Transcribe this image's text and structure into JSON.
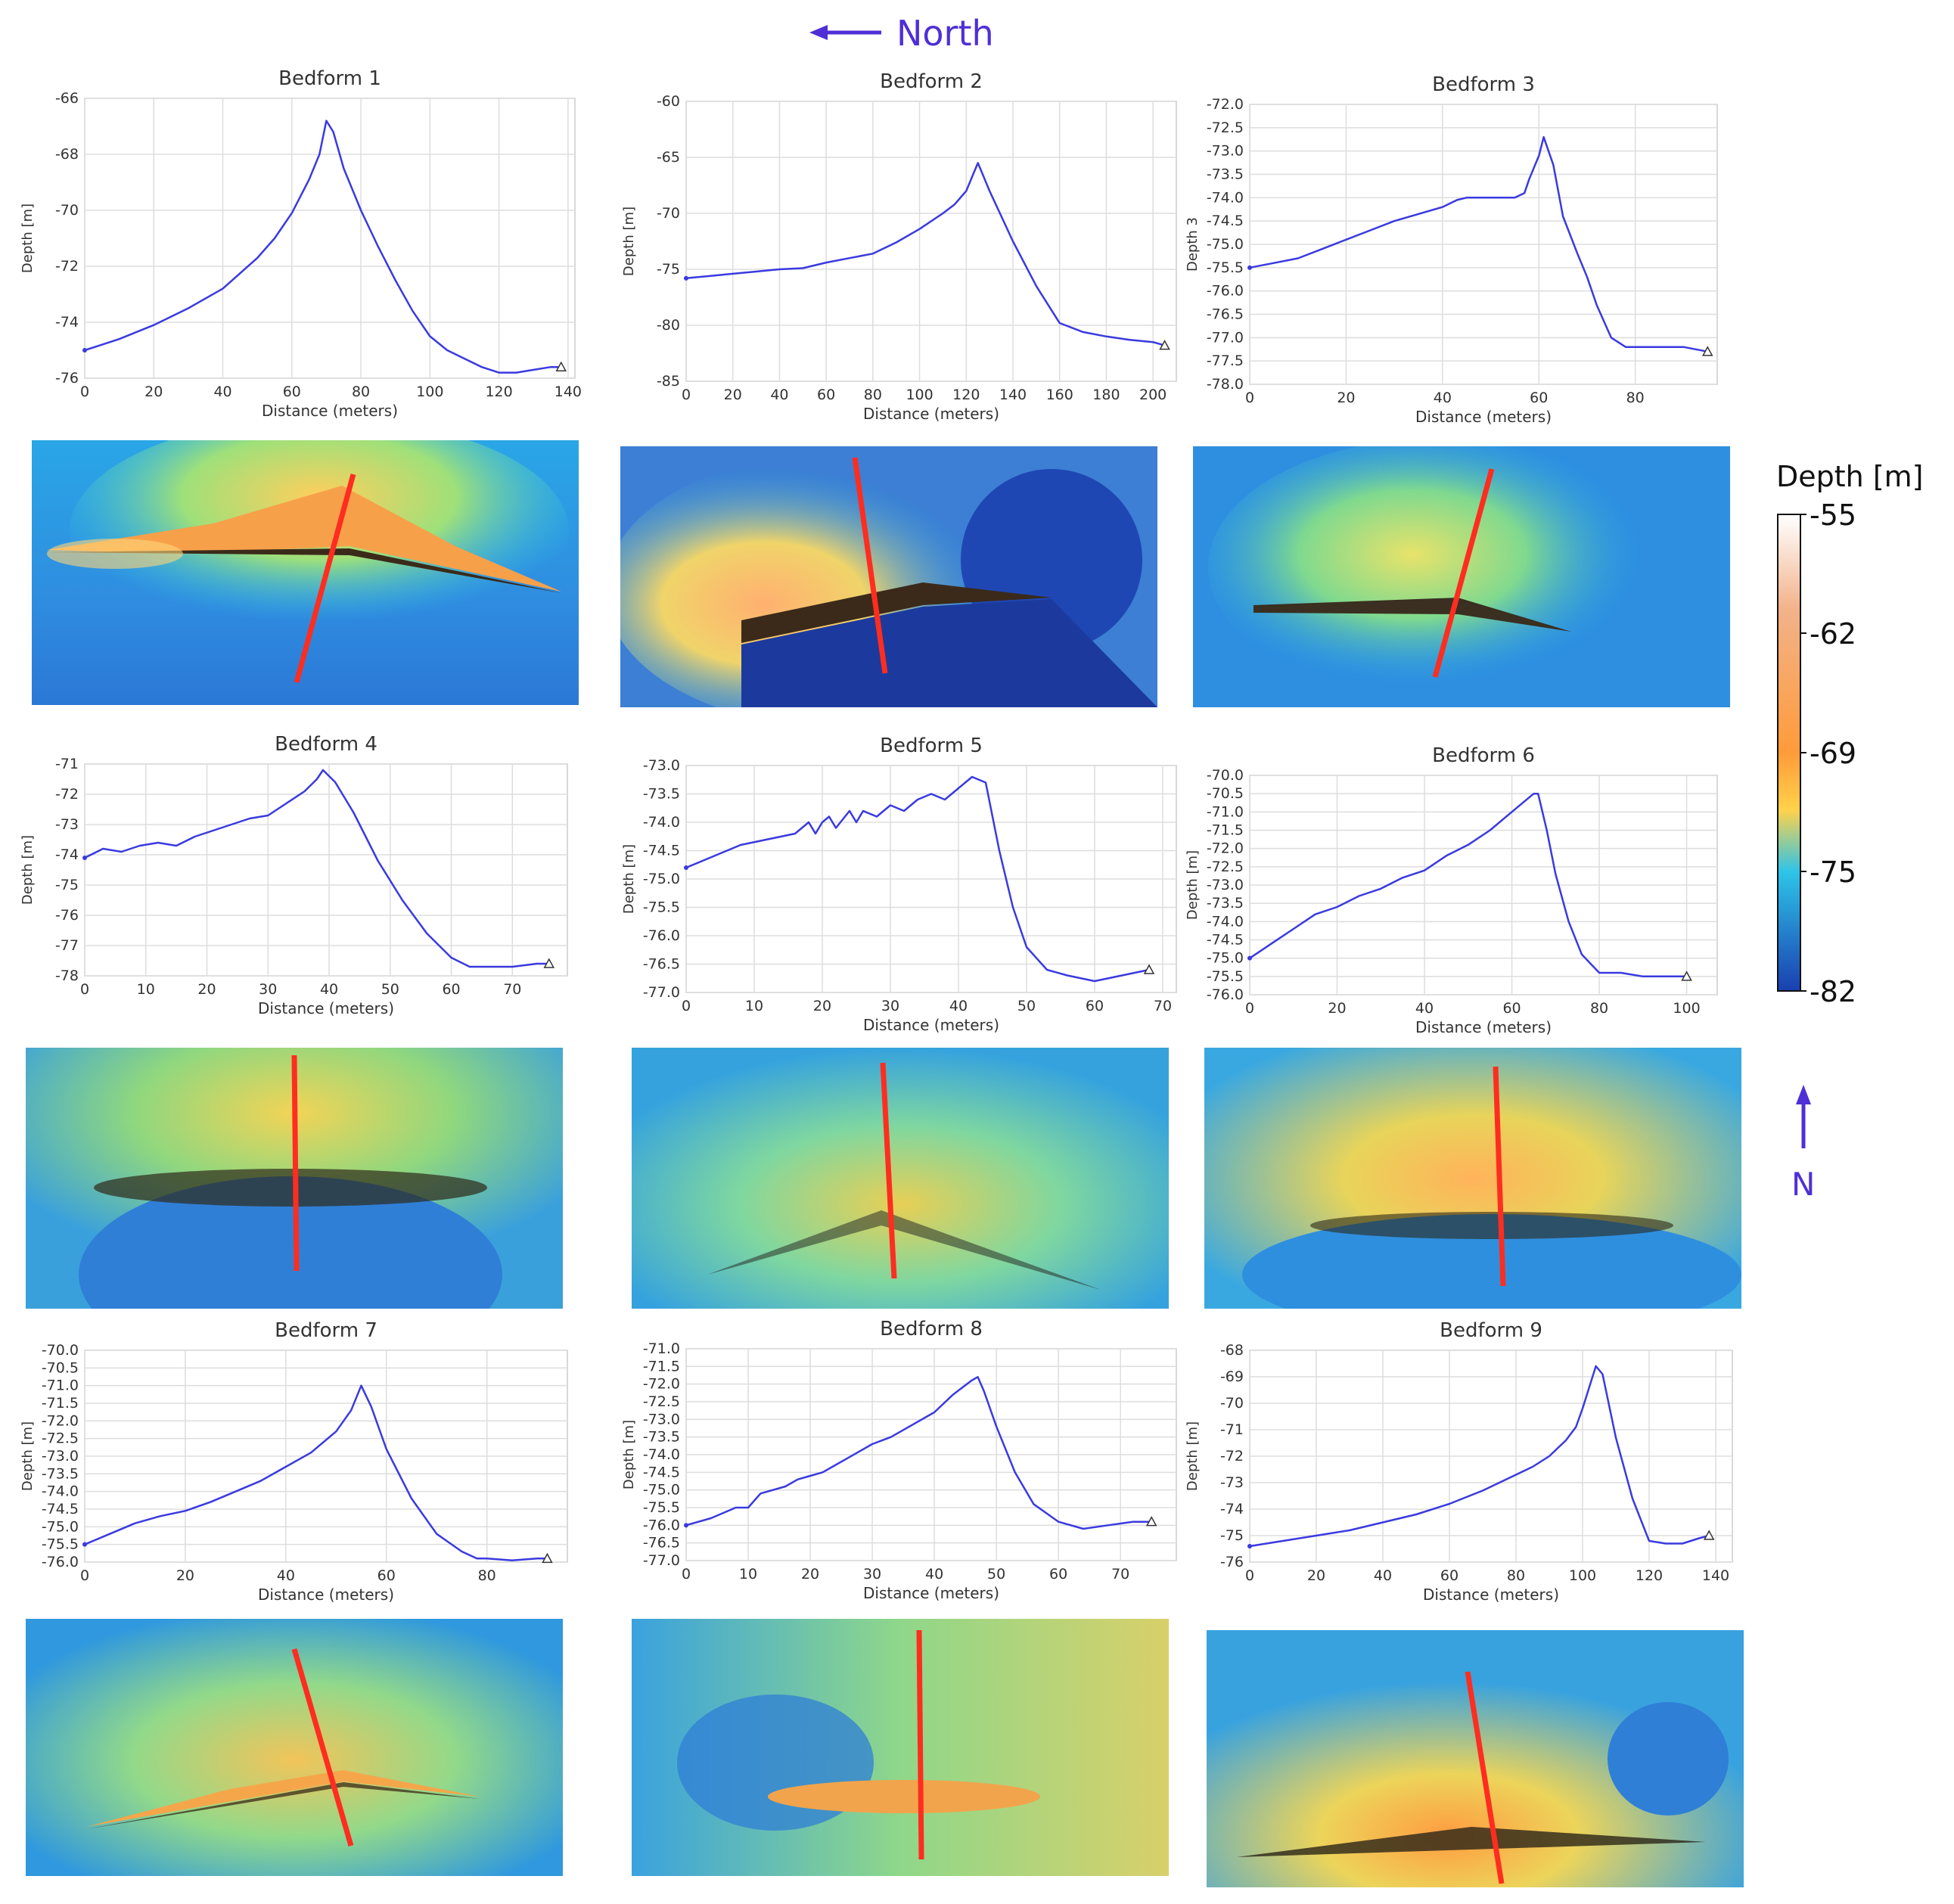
{
  "header": {
    "north_label": "North",
    "arrow_direction": "left"
  },
  "colorbar": {
    "title": "Depth [m]",
    "ticks": [
      "-55",
      "-62",
      "-69",
      "-75",
      "-82"
    ],
    "stops": [
      "#ffffff",
      "#f2b28a",
      "#ff9b3a",
      "#ffd24a",
      "#2ec4e8",
      "#1a3fb0"
    ],
    "north_marker": "N"
  },
  "colors": {
    "profile_line": "#3a3ae0",
    "grid": "#dddddd",
    "section_line": "#ff2d20",
    "north_text": "#4f2fd6"
  },
  "chart_data": [
    {
      "type": "line",
      "title": "Bedform 1",
      "xlabel": "Distance (meters)",
      "ylabel": "Depth [m]",
      "ylim": [
        -76,
        -66
      ],
      "yticks": [
        -76,
        -74,
        -72,
        -70,
        -68,
        -66
      ],
      "ytick_labels": [
        "-76",
        "-74",
        "-72",
        "-70",
        "-68",
        "-66"
      ],
      "xlim": [
        0,
        142
      ],
      "xticks": [
        0,
        20,
        40,
        60,
        80,
        100,
        120,
        140
      ],
      "x": [
        0,
        10,
        20,
        30,
        40,
        50,
        55,
        60,
        65,
        68,
        70,
        72,
        75,
        80,
        85,
        90,
        95,
        100,
        105,
        110,
        115,
        120,
        125,
        130,
        135,
        138
      ],
      "y": [
        -75.0,
        -74.6,
        -74.1,
        -73.5,
        -72.8,
        -71.7,
        -71.0,
        -70.1,
        -68.9,
        -68.0,
        -66.8,
        -67.2,
        -68.5,
        -70.0,
        -71.3,
        -72.5,
        -73.6,
        -74.5,
        -75.0,
        -75.3,
        -75.6,
        -75.8,
        -75.8,
        -75.7,
        -75.6,
        -75.6
      ]
    },
    {
      "type": "line",
      "title": "Bedform 2",
      "xlabel": "Distance (meters)",
      "ylabel": "Depth [m]",
      "ylim": [
        -85,
        -60
      ],
      "yticks": [
        -85,
        -80,
        -75,
        -70,
        -65,
        -60
      ],
      "ytick_labels": [
        "-85",
        "-80",
        "-75",
        "-70",
        "-65",
        "-60"
      ],
      "xlim": [
        0,
        210
      ],
      "xticks": [
        0,
        20,
        40,
        60,
        80,
        100,
        120,
        140,
        160,
        180,
        200
      ],
      "x": [
        0,
        10,
        20,
        30,
        40,
        50,
        60,
        70,
        80,
        90,
        100,
        110,
        115,
        120,
        125,
        130,
        140,
        150,
        160,
        170,
        180,
        190,
        200,
        205
      ],
      "y": [
        -75.8,
        -75.6,
        -75.4,
        -75.2,
        -75.0,
        -74.9,
        -74.4,
        -74.0,
        -73.6,
        -72.6,
        -71.4,
        -70.0,
        -69.2,
        -68.0,
        -65.5,
        -68.0,
        -72.5,
        -76.5,
        -79.8,
        -80.6,
        -81.0,
        -81.3,
        -81.5,
        -81.8
      ]
    },
    {
      "type": "line",
      "title": "Bedform 3",
      "xlabel": "Distance (meters)",
      "ylabel": "Depth 3",
      "ylim": [
        -78,
        -72
      ],
      "yticks": [
        -78,
        -77.5,
        -77,
        -76.5,
        -76,
        -75.5,
        -75,
        -74.5,
        -74,
        -73.5,
        -73,
        -72.5,
        -72
      ],
      "ytick_labels": [
        "-78.0",
        "-77.5",
        "-77.0",
        "-76.5",
        "-76.0",
        "-75.5",
        "-75.0",
        "-74.5",
        "-74.0",
        "-73.5",
        "-73.0",
        "-72.5",
        "-72.0"
      ],
      "xlim": [
        0,
        97
      ],
      "xticks": [
        0,
        20,
        40,
        60,
        80
      ],
      "x": [
        0,
        5,
        10,
        15,
        20,
        25,
        30,
        35,
        40,
        43,
        45,
        50,
        55,
        57,
        58,
        60,
        61,
        63,
        65,
        68,
        70,
        72,
        75,
        78,
        80,
        85,
        90,
        95
      ],
      "y": [
        -75.5,
        -75.4,
        -75.3,
        -75.1,
        -74.9,
        -74.7,
        -74.5,
        -74.35,
        -74.2,
        -74.05,
        -74.0,
        -74.0,
        -74.0,
        -73.9,
        -73.6,
        -73.1,
        -72.7,
        -73.3,
        -74.4,
        -75.2,
        -75.7,
        -76.3,
        -77.0,
        -77.2,
        -77.2,
        -77.2,
        -77.2,
        -77.3
      ]
    },
    {
      "type": "line",
      "title": "Bedform 4",
      "xlabel": "Distance (meters)",
      "ylabel": "Depth [m]",
      "ylim": [
        -78,
        -71
      ],
      "yticks": [
        -78,
        -77,
        -76,
        -75,
        -74,
        -73,
        -72,
        -71
      ],
      "ytick_labels": [
        "-78",
        "-77",
        "-76",
        "-75",
        "-74",
        "-73",
        "-72",
        "-71"
      ],
      "xlim": [
        0,
        79
      ],
      "xticks": [
        0,
        10,
        20,
        30,
        40,
        50,
        60,
        70
      ],
      "x": [
        0,
        3,
        6,
        9,
        12,
        15,
        18,
        21,
        24,
        27,
        30,
        33,
        36,
        38,
        39,
        41,
        44,
        48,
        52,
        56,
        60,
        63,
        66,
        70,
        74,
        76
      ],
      "y": [
        -74.1,
        -73.8,
        -73.9,
        -73.7,
        -73.6,
        -73.7,
        -73.4,
        -73.2,
        -73.0,
        -72.8,
        -72.7,
        -72.3,
        -71.9,
        -71.5,
        -71.2,
        -71.6,
        -72.6,
        -74.2,
        -75.5,
        -76.6,
        -77.4,
        -77.7,
        -77.7,
        -77.7,
        -77.6,
        -77.6
      ]
    },
    {
      "type": "line",
      "title": "Bedform 5",
      "xlabel": "Distance (meters)",
      "ylabel": "Depth [m]",
      "ylim": [
        -77,
        -73
      ],
      "yticks": [
        -77,
        -76.5,
        -76,
        -75.5,
        -75,
        -74.5,
        -74,
        -73.5,
        -73
      ],
      "ytick_labels": [
        "-77.0",
        "-76.5",
        "-76.0",
        "-75.5",
        "-75.0",
        "-74.5",
        "-74.0",
        "-73.5",
        "-73.0"
      ],
      "xlim": [
        0,
        72
      ],
      "xticks": [
        0,
        10,
        20,
        30,
        40,
        50,
        60,
        70
      ],
      "x": [
        0,
        4,
        8,
        12,
        16,
        18,
        19,
        20,
        21,
        22,
        24,
        25,
        26,
        28,
        30,
        32,
        34,
        36,
        38,
        40,
        42,
        44,
        46,
        48,
        50,
        53,
        56,
        60,
        64,
        68
      ],
      "y": [
        -74.8,
        -74.6,
        -74.4,
        -74.3,
        -74.2,
        -74.0,
        -74.2,
        -74.0,
        -73.9,
        -74.1,
        -73.8,
        -74.0,
        -73.8,
        -73.9,
        -73.7,
        -73.8,
        -73.6,
        -73.5,
        -73.6,
        -73.4,
        -73.2,
        -73.3,
        -74.5,
        -75.5,
        -76.2,
        -76.6,
        -76.7,
        -76.8,
        -76.7,
        -76.6
      ]
    },
    {
      "type": "line",
      "title": "Bedform 6",
      "xlabel": "Distance (meters)",
      "ylabel": "Depth [m]",
      "ylim": [
        -76,
        -70
      ],
      "yticks": [
        -76,
        -75.5,
        -75,
        -74.5,
        -74,
        -73.5,
        -73,
        -72.5,
        -72,
        -71.5,
        -71,
        -70.5,
        -70
      ],
      "ytick_labels": [
        "-76.0",
        "-75.5",
        "-75.0",
        "-74.5",
        "-74.0",
        "-73.5",
        "-73.0",
        "-72.5",
        "-72.0",
        "-71.5",
        "-71.0",
        "-70.5",
        "-70.0"
      ],
      "xlim": [
        0,
        107
      ],
      "xticks": [
        0,
        20,
        40,
        60,
        80,
        100
      ],
      "x": [
        0,
        5,
        10,
        15,
        20,
        25,
        30,
        35,
        40,
        45,
        50,
        55,
        60,
        63,
        65,
        66,
        68,
        70,
        73,
        76,
        80,
        85,
        90,
        95,
        100
      ],
      "y": [
        -75.0,
        -74.6,
        -74.2,
        -73.8,
        -73.6,
        -73.3,
        -73.1,
        -72.8,
        -72.6,
        -72.2,
        -71.9,
        -71.5,
        -71.0,
        -70.7,
        -70.5,
        -70.5,
        -71.5,
        -72.7,
        -74.0,
        -74.9,
        -75.4,
        -75.4,
        -75.5,
        -75.5,
        -75.5
      ]
    },
    {
      "type": "line",
      "title": "Bedform 7",
      "xlabel": "Distance (meters)",
      "ylabel": "Depth [m]",
      "ylim": [
        -76,
        -70
      ],
      "yticks": [
        -76,
        -75.5,
        -75,
        -74.5,
        -74,
        -73.5,
        -73,
        -72.5,
        -72,
        -71.5,
        -71,
        -70.5,
        -70
      ],
      "ytick_labels": [
        "-76.0",
        "-75.5",
        "-75.0",
        "-74.5",
        "-74.0",
        "-73.5",
        "-73.0",
        "-72.5",
        "-72.0",
        "-71.5",
        "-71.0",
        "-70.5",
        "-70.0"
      ],
      "xlim": [
        0,
        96
      ],
      "xticks": [
        0,
        20,
        40,
        60,
        80
      ],
      "x": [
        0,
        5,
        10,
        15,
        20,
        25,
        30,
        35,
        40,
        45,
        50,
        53,
        55,
        57,
        60,
        65,
        70,
        75,
        78,
        80,
        85,
        90,
        92
      ],
      "y": [
        -75.5,
        -75.2,
        -74.9,
        -74.7,
        -74.55,
        -74.3,
        -74.0,
        -73.7,
        -73.3,
        -72.9,
        -72.3,
        -71.7,
        -71.0,
        -71.6,
        -72.8,
        -74.2,
        -75.2,
        -75.7,
        -75.9,
        -75.9,
        -75.95,
        -75.9,
        -75.9
      ]
    },
    {
      "type": "line",
      "title": "Bedform 8",
      "xlabel": "Distance (meters)",
      "ylabel": "Depth [m]",
      "ylim": [
        -77,
        -71
      ],
      "yticks": [
        -77,
        -76.5,
        -76,
        -75.5,
        -75,
        -74.5,
        -74,
        -73.5,
        -73,
        -72.5,
        -72,
        -71.5,
        -71
      ],
      "ytick_labels": [
        "-77.0",
        "-76.5",
        "-76.0",
        "-75.5",
        "-75.0",
        "-74.5",
        "-74.0",
        "-73.5",
        "-73.0",
        "-72.5",
        "-72.0",
        "-71.5",
        "-71.0"
      ],
      "xlim": [
        0,
        79
      ],
      "xticks": [
        0,
        10,
        20,
        30,
        40,
        50,
        60,
        70
      ],
      "x": [
        0,
        4,
        8,
        10,
        12,
        14,
        16,
        18,
        20,
        22,
        24,
        26,
        28,
        30,
        33,
        36,
        40,
        43,
        46,
        47,
        48,
        50,
        53,
        56,
        60,
        64,
        68,
        72,
        75
      ],
      "y": [
        -76.0,
        -75.8,
        -75.5,
        -75.5,
        -75.1,
        -75.0,
        -74.9,
        -74.7,
        -74.6,
        -74.5,
        -74.3,
        -74.1,
        -73.9,
        -73.7,
        -73.5,
        -73.2,
        -72.8,
        -72.3,
        -71.9,
        -71.8,
        -72.2,
        -73.2,
        -74.5,
        -75.4,
        -75.9,
        -76.1,
        -76.0,
        -75.9,
        -75.9
      ]
    },
    {
      "type": "line",
      "title": "Bedform 9",
      "xlabel": "Distance (meters)",
      "ylabel": "Depth [m]",
      "ylim": [
        -76,
        -68
      ],
      "yticks": [
        -76,
        -75,
        -74,
        -73,
        -72,
        -71,
        -70,
        -69,
        -68
      ],
      "ytick_labels": [
        "-76",
        "-75",
        "-74",
        "-73",
        "-72",
        "-71",
        "-70",
        "-69",
        "-68"
      ],
      "xlim": [
        0,
        145
      ],
      "xticks": [
        0,
        20,
        40,
        60,
        80,
        100,
        120,
        140
      ],
      "x": [
        0,
        10,
        20,
        30,
        40,
        50,
        60,
        70,
        80,
        85,
        90,
        95,
        98,
        100,
        102,
        104,
        106,
        110,
        115,
        120,
        125,
        130,
        135,
        138
      ],
      "y": [
        -75.4,
        -75.2,
        -75.0,
        -74.8,
        -74.5,
        -74.2,
        -73.8,
        -73.3,
        -72.7,
        -72.4,
        -72.0,
        -71.4,
        -70.9,
        -70.2,
        -69.4,
        -68.6,
        -68.9,
        -71.3,
        -73.6,
        -75.2,
        -75.3,
        -75.3,
        -75.1,
        -75.0
      ]
    }
  ]
}
